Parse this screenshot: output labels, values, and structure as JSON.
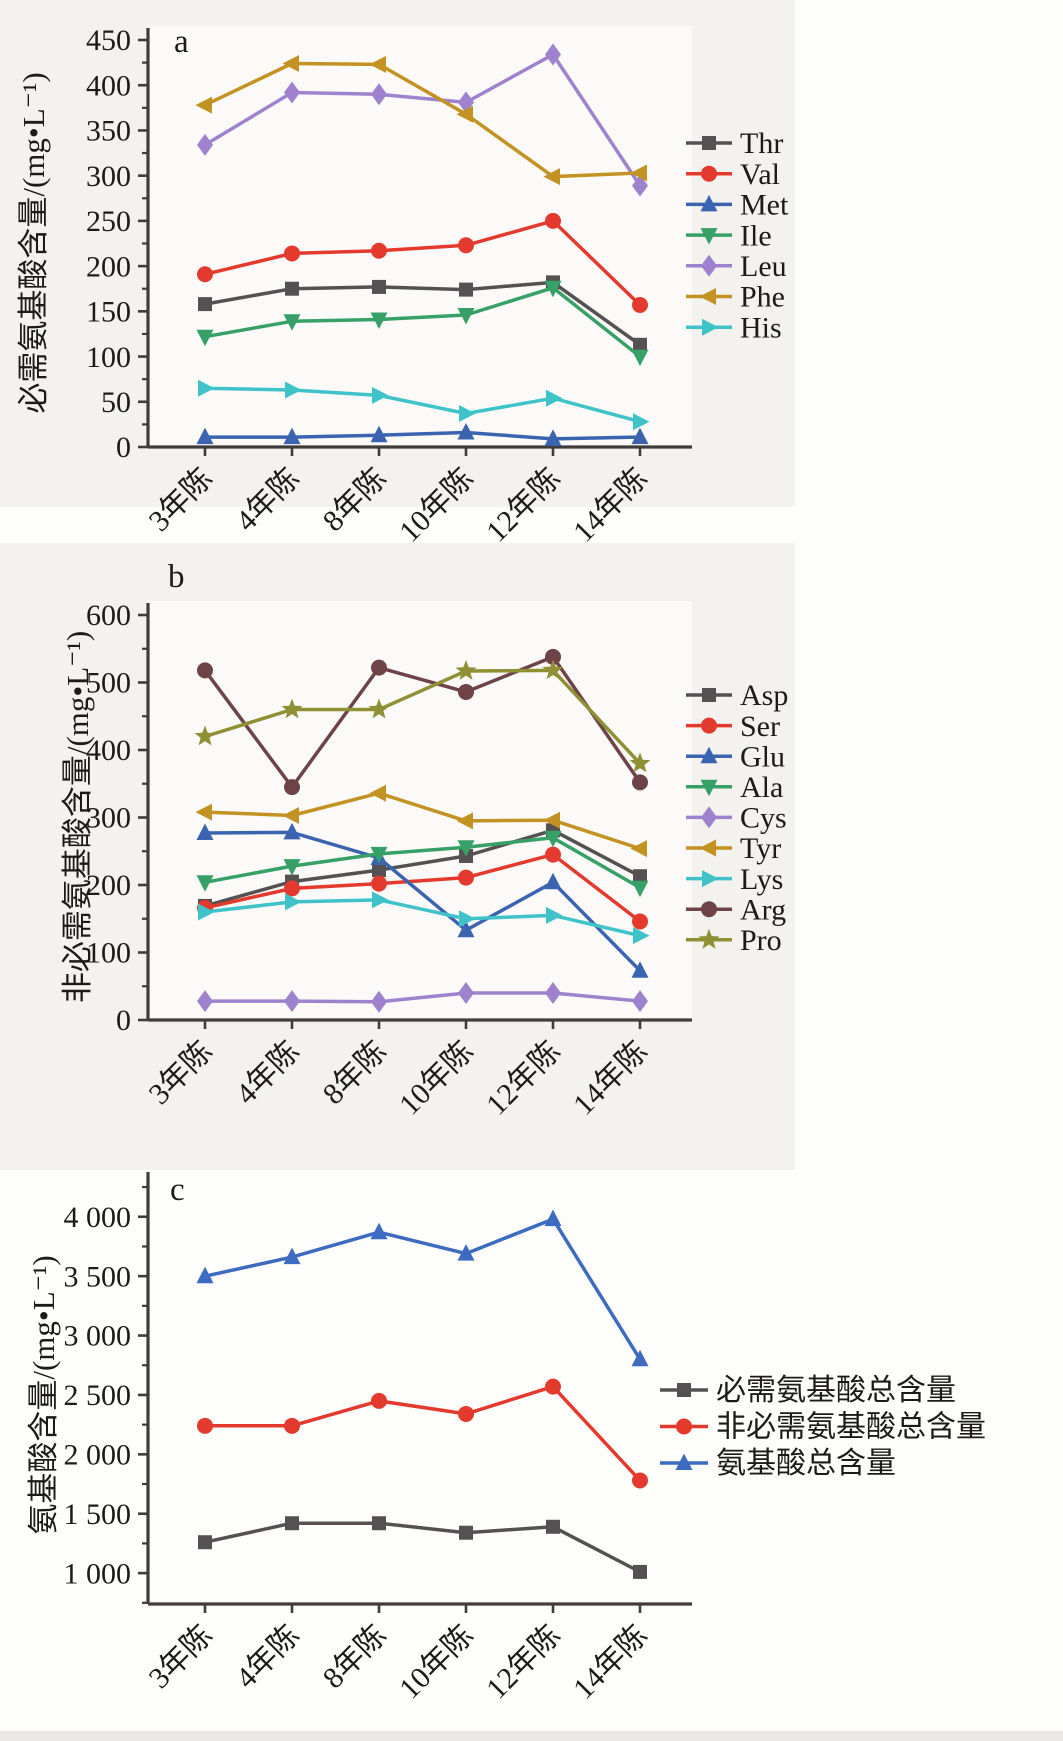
{
  "figure": {
    "page_background": "#fdfdfc",
    "panel_background": "#f3f2ef",
    "axis_color": "#403c3a",
    "text_color": "#1d1b1a",
    "panel_letters": [
      "a",
      "b",
      "c"
    ]
  },
  "chart_data": [
    {
      "id": "a",
      "type": "line",
      "panel_label": "a",
      "title": "",
      "xlabel": "",
      "ylabel": "必需氨基酸含量/(mg•L⁻¹)",
      "categories": [
        "3年陈",
        "4年陈",
        "8年陈",
        "10年陈",
        "12年陈",
        "14年陈"
      ],
      "ylim": [
        0,
        450
      ],
      "yticks": [
        0,
        50,
        100,
        150,
        200,
        250,
        300,
        350,
        400,
        450
      ],
      "ytick_labels": [
        "0",
        "50",
        "100",
        "150",
        "200",
        "250",
        "300",
        "350",
        "400",
        "450"
      ],
      "grid": false,
      "legend_position": "right",
      "series": [
        {
          "name": "Thr",
          "color": "#555152",
          "marker": "square",
          "values": [
            158,
            175,
            177,
            174,
            182,
            113
          ]
        },
        {
          "name": "Val",
          "color": "#e43a2d",
          "marker": "circle",
          "values": [
            191,
            214,
            217,
            223,
            250,
            157
          ]
        },
        {
          "name": "Met",
          "color": "#3a64b0",
          "marker": "triangle-up",
          "values": [
            11,
            11,
            13,
            16,
            9,
            11
          ]
        },
        {
          "name": "Ile",
          "color": "#37a067",
          "marker": "triangle-down",
          "values": [
            122,
            139,
            141,
            146,
            176,
            100
          ]
        },
        {
          "name": "Leu",
          "color": "#9e82cd",
          "marker": "diamond",
          "values": [
            334,
            392,
            390,
            381,
            434,
            289
          ]
        },
        {
          "name": "Phe",
          "color": "#c29223",
          "marker": "triangle-left",
          "values": [
            378,
            424,
            423,
            368,
            299,
            303
          ]
        },
        {
          "name": "His",
          "color": "#3fc3c9",
          "marker": "triangle-right",
          "values": [
            65,
            63,
            57,
            37,
            54,
            28
          ]
        }
      ]
    },
    {
      "id": "b",
      "type": "line",
      "panel_label": "b",
      "title": "",
      "xlabel": "",
      "ylabel": "非必需氨基酸含量/(mg•L⁻¹)",
      "categories": [
        "3年陈",
        "4年陈",
        "8年陈",
        "10年陈",
        "12年陈",
        "14年陈"
      ],
      "ylim": [
        0,
        600
      ],
      "yticks": [
        0,
        100,
        200,
        300,
        400,
        500,
        600
      ],
      "ytick_labels": [
        "0",
        "100",
        "200",
        "300",
        "400",
        "500",
        "600"
      ],
      "grid": false,
      "legend_position": "right",
      "series": [
        {
          "name": "Asp",
          "color": "#555152",
          "marker": "square",
          "values": [
            169,
            205,
            222,
            243,
            281,
            213
          ]
        },
        {
          "name": "Ser",
          "color": "#e43a2d",
          "marker": "circle",
          "values": [
            166,
            195,
            202,
            211,
            245,
            146
          ]
        },
        {
          "name": "Glu",
          "color": "#3a64b0",
          "marker": "triangle-up",
          "values": [
            277,
            278,
            240,
            133,
            204,
            73
          ]
        },
        {
          "name": "Ala",
          "color": "#37a067",
          "marker": "triangle-down",
          "values": [
            204,
            228,
            246,
            256,
            270,
            196
          ]
        },
        {
          "name": "Cys",
          "color": "#9e82cd",
          "marker": "diamond",
          "values": [
            28,
            28,
            27,
            40,
            40,
            28
          ]
        },
        {
          "name": "Tyr",
          "color": "#c29223",
          "marker": "triangle-left",
          "values": [
            308,
            303,
            336,
            295,
            296,
            254
          ]
        },
        {
          "name": "Lys",
          "color": "#3fc3c9",
          "marker": "triangle-right",
          "values": [
            160,
            175,
            178,
            150,
            155,
            125
          ]
        },
        {
          "name": "Arg",
          "color": "#6d4347",
          "marker": "circle",
          "values": [
            518,
            345,
            522,
            486,
            538,
            352
          ]
        },
        {
          "name": "Pro",
          "color": "#8e9033",
          "marker": "star",
          "values": [
            420,
            460,
            460,
            517,
            518,
            380
          ]
        }
      ]
    },
    {
      "id": "c",
      "type": "line",
      "panel_label": "c",
      "title": "",
      "xlabel": "",
      "ylabel": "氨基酸含量/(mg•L⁻¹)",
      "categories": [
        "3年陈",
        "4年陈",
        "8年陈",
        "10年陈",
        "12年陈",
        "14年陈"
      ],
      "ylim": [
        740,
        4360
      ],
      "yticks": [
        1000,
        1500,
        2000,
        2500,
        3000,
        3500,
        4000
      ],
      "ytick_labels": [
        "1 000",
        "1 500",
        "2 000",
        "2 500",
        "3 000",
        "3 500",
        "4 000"
      ],
      "grid": false,
      "legend_position": "right",
      "series": [
        {
          "name": "必需氨基酸总含量",
          "color": "#555152",
          "marker": "square",
          "values": [
            1260,
            1420,
            1420,
            1340,
            1390,
            1010
          ]
        },
        {
          "name": "非必需氨基酸总含量",
          "color": "#e43a2d",
          "marker": "circle",
          "values": [
            2240,
            2240,
            2450,
            2340,
            2570,
            1780
          ]
        },
        {
          "name": "氨基酸总含量",
          "color": "#3d6bc0",
          "marker": "triangle-up",
          "values": [
            3500,
            3660,
            3870,
            3690,
            3980,
            2800
          ]
        }
      ]
    }
  ]
}
